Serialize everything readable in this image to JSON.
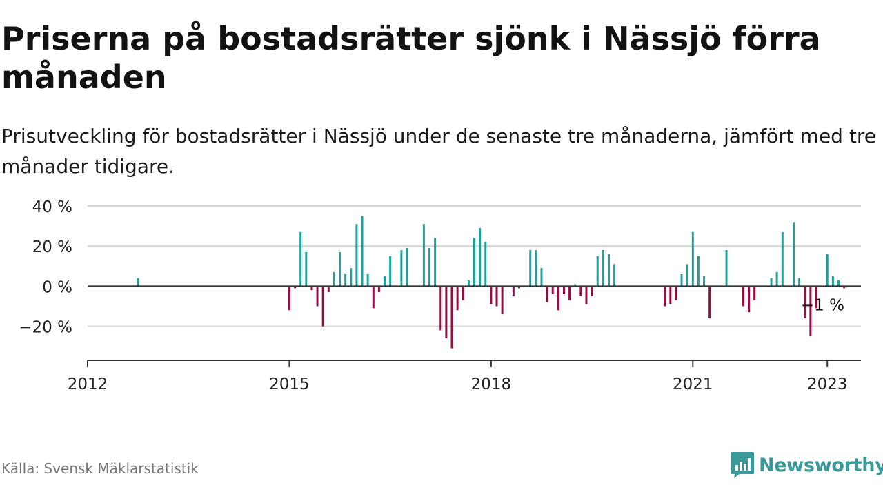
{
  "title": "Priserna på bostadsrätter sjönk i Nässjö förra månaden",
  "subtitle": "Prisutveckling för bostadsrätter i Nässjö under de senaste tre månaderna, jämfört med tre månader tidigare.",
  "source": "Källa: Svensk Mäklarstatistik",
  "logo_text": "Newsworthy",
  "colors": {
    "positive": "#1aa39c",
    "negative": "#9b0a43",
    "grid": "#d9d9d9",
    "axis": "#333333",
    "logo": "#3a9a9a"
  },
  "chart_data": {
    "type": "bar",
    "unit": "%",
    "last_value_label": "−1 %",
    "ylim": [
      -37,
      40
    ],
    "yticks": [
      40,
      20,
      0,
      -20
    ],
    "ytick_labels": [
      "40 %",
      "20 %",
      "0 %",
      "−20 %"
    ],
    "xlim": [
      2012.0,
      2023.5
    ],
    "xticks": [
      2012,
      2015,
      2018,
      2021,
      2023
    ],
    "xtick_labels": [
      "2012",
      "2015",
      "2018",
      "2021",
      "2023"
    ],
    "grid": true,
    "series": [
      {
        "points": [
          [
            "2012-10",
            4
          ],
          [
            "2015-01",
            -12
          ],
          [
            "2015-02",
            -1
          ],
          [
            "2015-03",
            27
          ],
          [
            "2015-04",
            17
          ],
          [
            "2015-05",
            -2
          ],
          [
            "2015-06",
            -10
          ],
          [
            "2015-07",
            -20
          ],
          [
            "2015-08",
            -3
          ],
          [
            "2015-09",
            7
          ],
          [
            "2015-10",
            17
          ],
          [
            "2015-11",
            6
          ],
          [
            "2015-12",
            9
          ],
          [
            "2016-01",
            31
          ],
          [
            "2016-02",
            35
          ],
          [
            "2016-03",
            6
          ],
          [
            "2016-04",
            -11
          ],
          [
            "2016-05",
            -3
          ],
          [
            "2016-06",
            5
          ],
          [
            "2016-07",
            15
          ],
          [
            "2016-09",
            18
          ],
          [
            "2016-10",
            19
          ],
          [
            "2017-01",
            31
          ],
          [
            "2017-02",
            19
          ],
          [
            "2017-03",
            24
          ],
          [
            "2017-04",
            -22
          ],
          [
            "2017-05",
            -26
          ],
          [
            "2017-06",
            -31
          ],
          [
            "2017-07",
            -12
          ],
          [
            "2017-08",
            -7
          ],
          [
            "2017-09",
            3
          ],
          [
            "2017-10",
            24
          ],
          [
            "2017-11",
            29
          ],
          [
            "2017-12",
            22
          ],
          [
            "2018-01",
            -9
          ],
          [
            "2018-02",
            -10
          ],
          [
            "2018-03",
            -14
          ],
          [
            "2018-05",
            -5
          ],
          [
            "2018-06",
            -1
          ],
          [
            "2018-08",
            18
          ],
          [
            "2018-09",
            18
          ],
          [
            "2018-10",
            9
          ],
          [
            "2018-11",
            -8
          ],
          [
            "2018-12",
            -4
          ],
          [
            "2019-01",
            -12
          ],
          [
            "2019-02",
            -4
          ],
          [
            "2019-03",
            -7
          ],
          [
            "2019-04",
            1
          ],
          [
            "2019-05",
            -5
          ],
          [
            "2019-06",
            -9
          ],
          [
            "2019-07",
            -5
          ],
          [
            "2019-08",
            15
          ],
          [
            "2019-09",
            18
          ],
          [
            "2019-10",
            16
          ],
          [
            "2019-11",
            11
          ],
          [
            "2020-08",
            -10
          ],
          [
            "2020-09",
            -9
          ],
          [
            "2020-10",
            -7
          ],
          [
            "2020-11",
            6
          ],
          [
            "2020-12",
            11
          ],
          [
            "2021-01",
            27
          ],
          [
            "2021-02",
            15
          ],
          [
            "2021-03",
            5
          ],
          [
            "2021-04",
            -16
          ],
          [
            "2021-07",
            18
          ],
          [
            "2021-10",
            -10
          ],
          [
            "2021-11",
            -13
          ],
          [
            "2021-12",
            -7
          ],
          [
            "2022-03",
            4
          ],
          [
            "2022-04",
            7
          ],
          [
            "2022-05",
            27
          ],
          [
            "2022-07",
            32
          ],
          [
            "2022-08",
            4
          ],
          [
            "2022-09",
            -16
          ],
          [
            "2022-10",
            -25
          ],
          [
            "2022-11",
            -11
          ],
          [
            "2023-01",
            16
          ],
          [
            "2023-02",
            5
          ],
          [
            "2023-03",
            3
          ],
          [
            "2023-04",
            -1
          ]
        ]
      }
    ]
  }
}
